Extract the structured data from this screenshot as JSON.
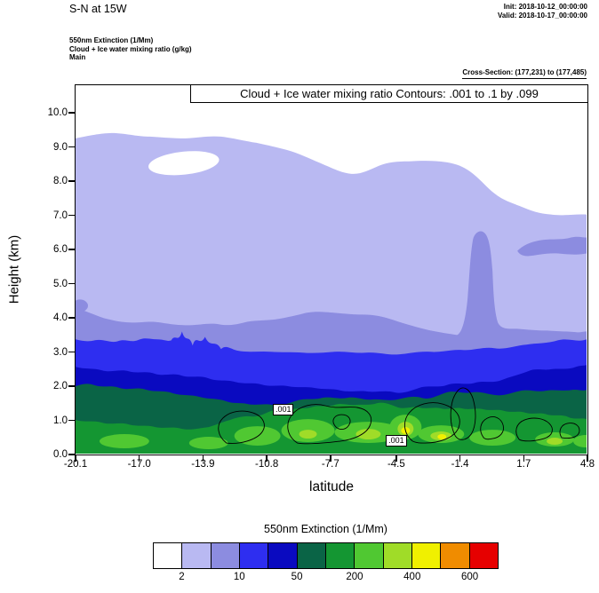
{
  "header": {
    "title": "S-N at 15W",
    "init_line": "Init: 2018-10-12_00:00:00",
    "valid_line": "Valid: 2018-10-17_00:00:00",
    "field_line1": "550nm Extinction  (1/Mm)",
    "field_line2": "Cloud + Ice water mixing ratio  (g/kg)",
    "field_line3": "Main",
    "cross_section": "Cross-Section: (177,231) to (177,485)"
  },
  "plot": {
    "banner": "Cloud + Ice water mixing ratio Contours: .001 to .1 by .099",
    "xlabel": "latitude",
    "ylabel": "Height (km)",
    "yticks": [
      "0.0",
      "1.0",
      "2.0",
      "3.0",
      "4.0",
      "5.0",
      "6.0",
      "7.0",
      "8.0",
      "9.0",
      "10.0"
    ],
    "xticks": [
      "-20.1",
      "-17.0",
      "-13.9",
      "-10.8",
      "-7.7",
      "-4.5",
      "-1.4",
      "1.7",
      "4.8"
    ],
    "contour_labels": [
      {
        "text": ".001",
        "lat": -9.9,
        "km": 1.3
      },
      {
        "text": ".001",
        "lat": -4.4,
        "km": 0.4
      }
    ]
  },
  "colorbar": {
    "title": "550nm Extinction  (1/Mm)",
    "colors": [
      "#ffffff",
      "#b9b9f2",
      "#8c8ce0",
      "#2e2ef0",
      "#0a0ac0",
      "#0a6446",
      "#149632",
      "#50c832",
      "#a0dc28",
      "#f0f000",
      "#f08c00",
      "#e60000"
    ],
    "tick_labels": [
      "2",
      "10",
      "50",
      "200",
      "400",
      "600"
    ],
    "tick_boundary_indices": [
      1,
      3,
      5,
      7,
      9,
      11
    ]
  },
  "chart_data": {
    "type": "heatmap",
    "title": "S-N at 15W",
    "subtitle": "Cross-Section: (177,231) to (177,485)",
    "xlabel": "latitude",
    "ylabel": "Height (km)",
    "xlim": [
      -20.1,
      4.8
    ],
    "ylim": [
      0.0,
      10.8
    ],
    "xticks": [
      -20.1,
      -17.0,
      -13.9,
      -10.8,
      -7.7,
      -4.5,
      -1.4,
      1.7,
      4.8
    ],
    "yticks": [
      0,
      1,
      2,
      3,
      4,
      5,
      6,
      7,
      8,
      9,
      10
    ],
    "grid": false,
    "legend_position": "bottom-colorbar",
    "fill_variable": "550nm Extinction (1/Mm)",
    "fill_levels": [
      2,
      5,
      10,
      20,
      50,
      100,
      200,
      300,
      400,
      500,
      600
    ],
    "fill_colors": [
      "#ffffff",
      "#b9b9f2",
      "#8c8ce0",
      "#2e2ef0",
      "#0a0ac0",
      "#0a6446",
      "#149632",
      "#50c832",
      "#a0dc28",
      "#f0f000",
      "#f08c00",
      "#e60000"
    ],
    "overlay_variable": "Cloud + Ice water mixing ratio (g/kg)",
    "overlay_levels": [
      0.001,
      0.1
    ],
    "x": [
      -20.1,
      -17.0,
      -13.9,
      -10.8,
      -7.7,
      -4.5,
      -1.4,
      1.7,
      4.8
    ],
    "series": [
      {
        "name": "top height (km) of extinction >= 2",
        "values": [
          9.2,
          9.3,
          9.0,
          8.6,
          8.3,
          8.5,
          7.9,
          7.3,
          7.0
        ]
      },
      {
        "name": "top height (km) of extinction >= 5",
        "values": [
          4.2,
          3.8,
          3.9,
          4.1,
          4.1,
          3.7,
          3.5,
          3.4,
          3.5
        ]
      },
      {
        "name": "top height (km) of extinction >= 10",
        "values": [
          3.4,
          3.2,
          3.3,
          3.0,
          3.0,
          2.9,
          3.0,
          3.3,
          3.3
        ]
      },
      {
        "name": "top height (km) of extinction >= 20",
        "values": [
          2.5,
          2.4,
          2.2,
          2.0,
          1.9,
          2.0,
          2.2,
          2.5,
          2.6
        ]
      },
      {
        "name": "top height (km) of extinction >= 50",
        "values": [
          2.0,
          1.7,
          1.5,
          1.5,
          1.6,
          1.7,
          1.7,
          1.8,
          1.8
        ]
      },
      {
        "name": "top height (km) of extinction >= 100",
        "values": [
          1.0,
          0.9,
          1.0,
          1.3,
          1.5,
          1.4,
          1.3,
          1.1,
          1.0
        ]
      },
      {
        "name": "top height (km) of extinction >= 200",
        "values": [
          0.4,
          0.3,
          0.6,
          0.8,
          0.9,
          0.9,
          0.6,
          0.5,
          0.4
        ]
      },
      {
        "name": "top height (km) of extinction >= 300",
        "values": [
          0,
          0,
          0,
          0.5,
          0.7,
          0.6,
          0.3,
          0,
          0
        ]
      },
      {
        "name": "top height (km) of extinction >= 400",
        "values": [
          0,
          0,
          0,
          0,
          0.5,
          0.5,
          0,
          0,
          0
        ]
      }
    ],
    "notable_features": [
      "clear (<2) hole inside upper cloud layer near lat -16.5 at 8.0-8.8 km",
      "5-10 band plume rising to ~6.5 km near lat -0.4",
      "detached 5-10 band at 5.7-6.3 km from lat 1.5 to 4.8",
      "cloud+ice 0.001 g/kg contour loops between 0.3 and 1.9 km from lat -13 to 4",
      "two .001 contour labels at (-9.9, 1.3 km) and (-4.4, 0.4 km)"
    ]
  }
}
